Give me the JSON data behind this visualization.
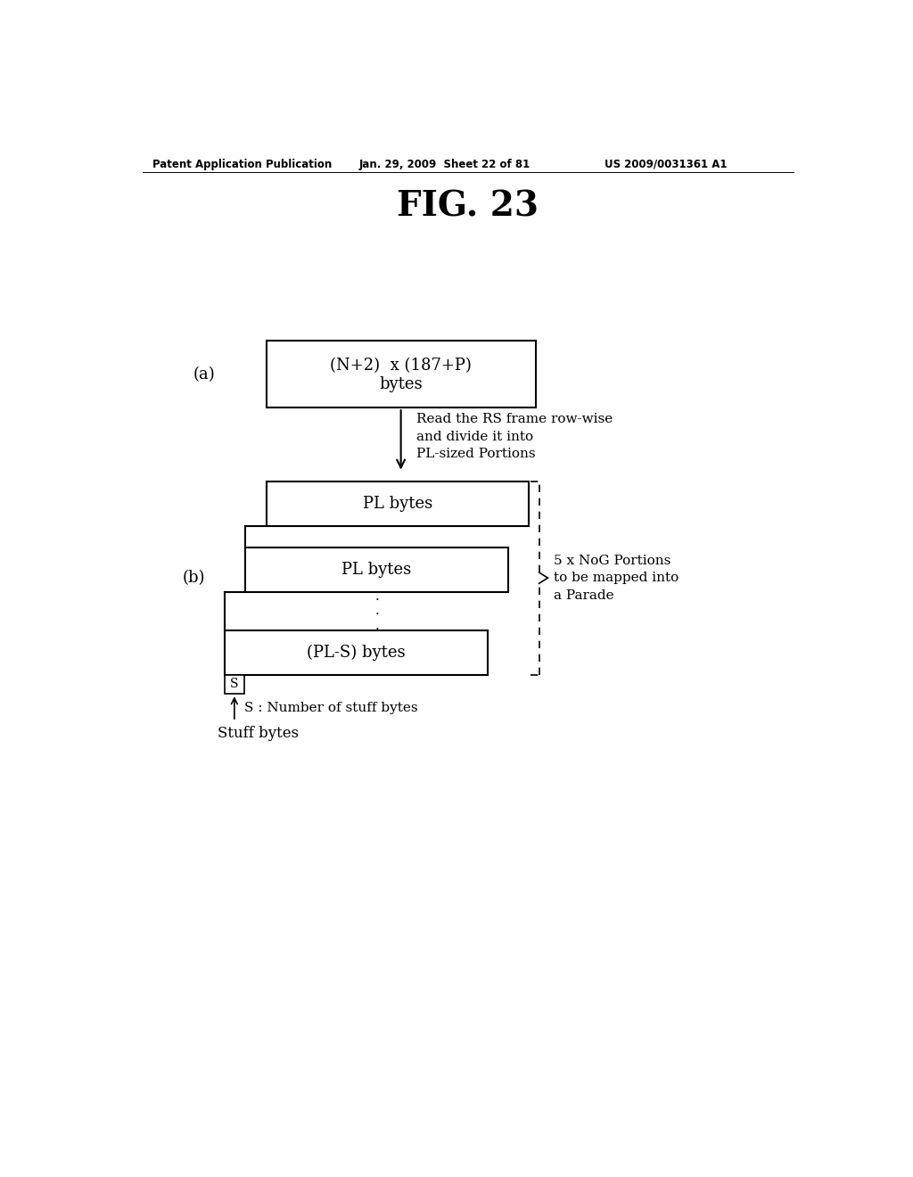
{
  "background_color": "#ffffff",
  "title": "FIG. 23",
  "header_left": "Patent Application Publication",
  "header_mid": "Jan. 29, 2009  Sheet 22 of 81",
  "header_right": "US 2009/0031361 A1",
  "label_a": "(a)",
  "label_b": "(b)",
  "box_a_text_line1": "(N+2)  x (187+P)",
  "box_a_text_line2": "bytes",
  "arrow_annotation": "Read the RS frame row-wise\nand divide it into\nPL-sized Portions",
  "box1_text": "PL bytes",
  "box2_text": "PL bytes",
  "box3_text": "(PL-S) bytes",
  "stuff_box_text": "S",
  "brace_annotation": "5 x NoG Portions\nto be mapped into\na Parade",
  "arrow_s_label": "S : Number of stuff bytes",
  "stuff_bytes_label": "Stuff bytes"
}
